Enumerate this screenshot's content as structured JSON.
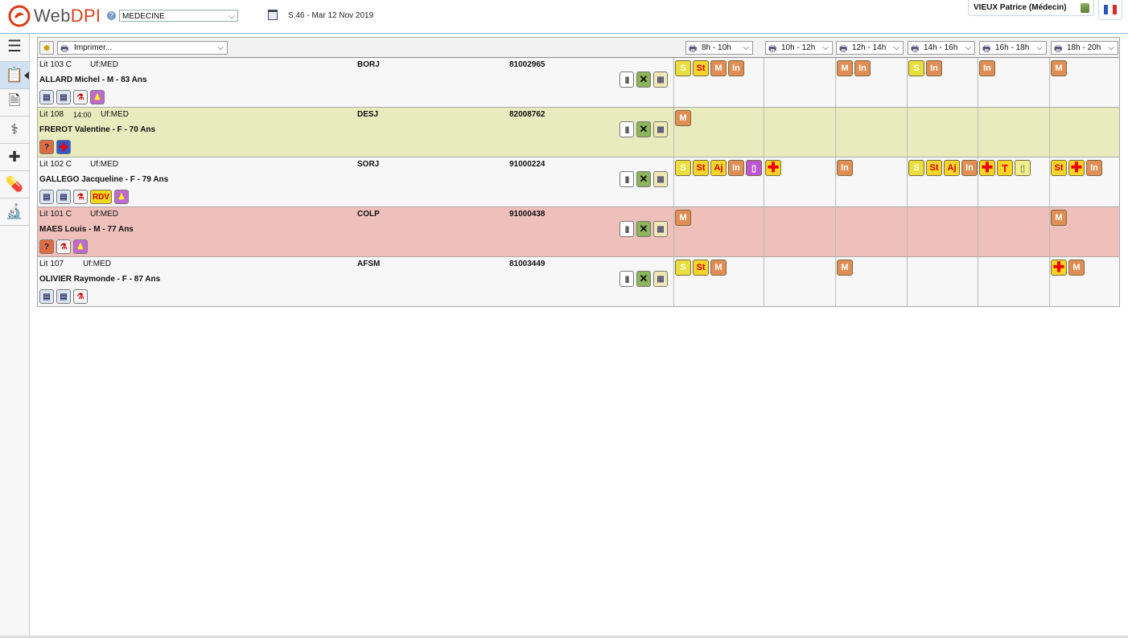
{
  "app": {
    "logo_prefix": "Web",
    "logo_suffix": "DPI",
    "service": "MEDECINE",
    "date": "S.46 - Mar 12 Nov 2019",
    "user": "VIEUX Patrice (Médecin)",
    "help": "?",
    "flag_colors": [
      "#2b56b8",
      "#ffffff",
      "#d8292c"
    ]
  },
  "toolbar": {
    "print_label": "Imprimer...",
    "slots": [
      "8h - 10h",
      "10h - 12h",
      "12h - 14h",
      "14h - 16h",
      "16h - 18h",
      "18h - 20h"
    ]
  },
  "sidebar": {
    "items": [
      "clipboard-list-icon",
      "document-icon",
      "stethoscope-icon",
      "medical-kit-icon",
      "pills-icon",
      "microscope-icon"
    ]
  },
  "patients": [
    {
      "bed": "Lit 103 C",
      "time": "",
      "uf": "Uf:MED",
      "name": "ALLARD Michel - M - 83 Ans",
      "doctor": "BORJ",
      "id": "81002965",
      "bg": "white",
      "icons": [
        "blue",
        "blue",
        "tube",
        "flask"
      ],
      "slots": [
        [
          "S",
          "St",
          "M",
          "In"
        ],
        [],
        [
          "M",
          "In"
        ],
        [
          "S",
          "In"
        ],
        [
          "In"
        ],
        [
          "M"
        ]
      ]
    },
    {
      "bed": "Lit 108",
      "time": "14:00",
      "uf": "Uf:MED",
      "name": "FREROT Valentine - F - 70 Ans",
      "doctor": "DESJ",
      "id": "82008762",
      "bg": "yellow",
      "icons": [
        "q",
        "cross"
      ],
      "slots": [
        [
          "M"
        ],
        [],
        [],
        [],
        [],
        []
      ]
    },
    {
      "bed": "Lit 102 C",
      "time": "",
      "uf": "Uf:MED",
      "name": "GALLEGO Jacqueline - F - 79 Ans",
      "doctor": "SORJ",
      "id": "91000224",
      "bg": "white",
      "icons": [
        "blue",
        "blue",
        "tube",
        "rdv",
        "flask"
      ],
      "rdv": "RDV",
      "slots": [
        [
          "S",
          "St",
          "Aj",
          "In",
          "doc"
        ],
        [
          "cross"
        ],
        [
          "In"
        ],
        [
          "S",
          "St",
          "Aj",
          "In"
        ],
        [
          "cross",
          "T",
          "docY"
        ],
        [
          "St",
          "cross",
          "In"
        ]
      ]
    },
    {
      "bed": "Lit 101 C",
      "time": "",
      "uf": "Uf:MED",
      "name": "MAES Louis - M - 77 Ans",
      "doctor": "COLP",
      "id": "91000438",
      "bg": "red",
      "icons": [
        "q",
        "tube",
        "flask"
      ],
      "slots": [
        [
          "M"
        ],
        [],
        [],
        [],
        [],
        [
          "M"
        ]
      ]
    },
    {
      "bed": "Lit 107",
      "time": "",
      "uf": "Uf:MED",
      "name": "OLIVIER Raymonde - F - 87 Ans",
      "doctor": "AFSM",
      "id": "81003449",
      "bg": "white",
      "icons": [
        "blue",
        "blue",
        "tube"
      ],
      "slots": [
        [
          "S",
          "St",
          "M"
        ],
        [],
        [
          "M"
        ],
        [],
        [],
        [
          "cross",
          "M"
        ]
      ]
    }
  ],
  "pill_labels": {
    "S": "S",
    "St": "St",
    "M": "M",
    "In": "In",
    "Aj": "Aj",
    "T": "T",
    "cross": "✚",
    "doc": "▯",
    "docY": "▯"
  }
}
